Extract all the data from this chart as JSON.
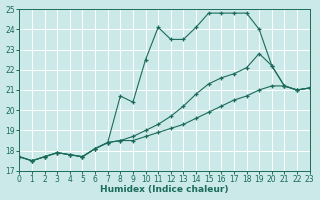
{
  "xlabel": "Humidex (Indice chaleur)",
  "bg_color": "#cce9e9",
  "line_color": "#1a6b5a",
  "grid_color": "#ffffff",
  "xlim": [
    0,
    23
  ],
  "ylim": [
    17,
    25
  ],
  "xticks": [
    0,
    1,
    2,
    3,
    4,
    5,
    6,
    7,
    8,
    9,
    10,
    11,
    12,
    13,
    14,
    15,
    16,
    17,
    18,
    19,
    20,
    21,
    22,
    23
  ],
  "yticks": [
    17,
    18,
    19,
    20,
    21,
    22,
    23,
    24,
    25
  ],
  "series": [
    {
      "x": [
        0,
        1,
        2,
        3,
        4,
        5,
        6,
        7,
        8,
        9,
        10,
        11,
        12,
        13,
        14,
        15,
        16,
        17,
        18,
        19,
        20,
        21,
        22,
        23
      ],
      "y": [
        17.7,
        17.5,
        17.7,
        17.9,
        17.8,
        17.7,
        18.1,
        18.4,
        20.7,
        20.4,
        22.5,
        24.1,
        23.5,
        23.5,
        24.1,
        24.8,
        24.8,
        24.8,
        24.8,
        24.0,
        22.2,
        21.2,
        21.0,
        21.1
      ]
    },
    {
      "x": [
        0,
        1,
        2,
        3,
        4,
        5,
        6,
        7,
        8,
        9,
        10,
        11,
        12,
        13,
        14,
        15,
        16,
        17,
        18,
        19,
        20,
        21,
        22,
        23
      ],
      "y": [
        17.7,
        17.5,
        17.7,
        17.9,
        17.8,
        17.7,
        18.1,
        18.4,
        18.5,
        18.7,
        19.0,
        19.3,
        19.7,
        20.2,
        20.8,
        21.3,
        21.6,
        21.8,
        22.1,
        22.8,
        22.2,
        21.2,
        21.0,
        21.1
      ]
    },
    {
      "x": [
        0,
        1,
        2,
        3,
        4,
        5,
        6,
        7,
        8,
        9,
        10,
        11,
        12,
        13,
        14,
        15,
        16,
        17,
        18,
        19,
        20,
        21,
        22,
        23
      ],
      "y": [
        17.7,
        17.5,
        17.7,
        17.9,
        17.8,
        17.7,
        18.1,
        18.4,
        18.5,
        18.5,
        18.7,
        18.9,
        19.1,
        19.3,
        19.6,
        19.9,
        20.2,
        20.5,
        20.7,
        21.0,
        21.2,
        21.2,
        21.0,
        21.1
      ]
    }
  ]
}
